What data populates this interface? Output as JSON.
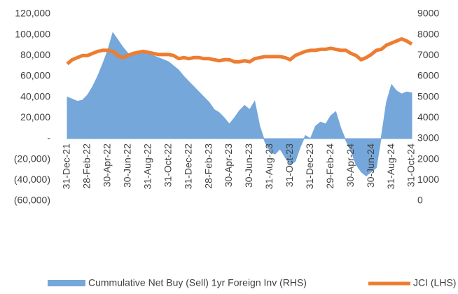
{
  "chart_data": {
    "type": "area-line",
    "categories": [
      "31-Dec-21",
      null,
      null,
      null,
      "28-Feb-22",
      null,
      null,
      null,
      "30-Apr-22",
      null,
      null,
      null,
      "30-Jun-22",
      null,
      null,
      null,
      "31-Aug-22",
      null,
      null,
      null,
      "31-Oct-22",
      null,
      null,
      null,
      "31-Dec-22",
      null,
      null,
      null,
      "28-Feb-23",
      null,
      null,
      null,
      "30-Apr-23",
      null,
      null,
      null,
      "30-Jun-23",
      null,
      null,
      null,
      "31-Aug-23",
      null,
      null,
      null,
      "31-Oct-23",
      null,
      null,
      null,
      "31-Dec-23",
      null,
      null,
      null,
      "29-Feb-24",
      null,
      null,
      null,
      "30-Apr-24",
      null,
      null,
      null,
      "30-Jun-24",
      null,
      null,
      null,
      "31-Aug-24",
      null,
      null,
      null,
      "31-Oct-24"
    ],
    "series": [
      {
        "name": "Cummulative Net Buy (Sell) 1yr Foreign Inv (RHS)",
        "type": "area",
        "color": "#75a7da",
        "values": [
          40000,
          38000,
          36000,
          37000,
          42000,
          50000,
          60000,
          72000,
          85000,
          102000,
          95000,
          88000,
          82000,
          80000,
          83000,
          82000,
          84000,
          80000,
          78000,
          76000,
          74000,
          70000,
          66000,
          60000,
          55000,
          50000,
          45000,
          40000,
          35000,
          28000,
          25000,
          20000,
          14000,
          20000,
          27000,
          32000,
          28000,
          36000,
          12000,
          -3000,
          -12000,
          -15000,
          -10000,
          -18000,
          -25000,
          -22000,
          -8000,
          3000,
          0,
          12000,
          16000,
          14000,
          22000,
          26000,
          10000,
          -2000,
          -12000,
          -25000,
          -32000,
          -36000,
          -32000,
          -28000,
          2000,
          35000,
          52000,
          46000,
          43000,
          45000,
          44000
        ]
      },
      {
        "name": "JCI (LHS)",
        "type": "line",
        "color": "#ed7d31",
        "axis": "y2",
        "values": [
          6600,
          6800,
          6900,
          7000,
          7000,
          7100,
          7200,
          7250,
          7250,
          7200,
          7000,
          6900,
          7000,
          7100,
          7150,
          7200,
          7150,
          7100,
          7050,
          7050,
          7050,
          7000,
          6850,
          6900,
          6850,
          6900,
          6900,
          6850,
          6850,
          6800,
          6750,
          6800,
          6800,
          6700,
          6700,
          6750,
          6700,
          6850,
          6900,
          6950,
          6950,
          6950,
          6950,
          6900,
          6800,
          7000,
          7100,
          7200,
          7250,
          7250,
          7300,
          7300,
          7350,
          7300,
          7250,
          7250,
          7100,
          7000,
          6800,
          6900,
          7050,
          7250,
          7300,
          7500,
          7600,
          7700,
          7800,
          7700,
          7550
        ]
      }
    ],
    "ylim": [
      -60000,
      120000
    ],
    "yticks": [
      {
        "value": -60000,
        "label": "(60,000)"
      },
      {
        "value": -40000,
        "label": "(40,000)"
      },
      {
        "value": -20000,
        "label": "(20,000)"
      },
      {
        "value": 0,
        "label": "-"
      },
      {
        "value": 20000,
        "label": "20,000"
      },
      {
        "value": 40000,
        "label": "40,000"
      },
      {
        "value": 60000,
        "label": "60,000"
      },
      {
        "value": 80000,
        "label": "80,000"
      },
      {
        "value": 100000,
        "label": "100,000"
      },
      {
        "value": 120000,
        "label": "120,000"
      }
    ],
    "y2lim": [
      0,
      9000
    ],
    "y2ticks": [
      0,
      1000,
      2000,
      3000,
      4000,
      5000,
      6000,
      7000,
      8000,
      9000
    ],
    "legend": "bottom"
  }
}
